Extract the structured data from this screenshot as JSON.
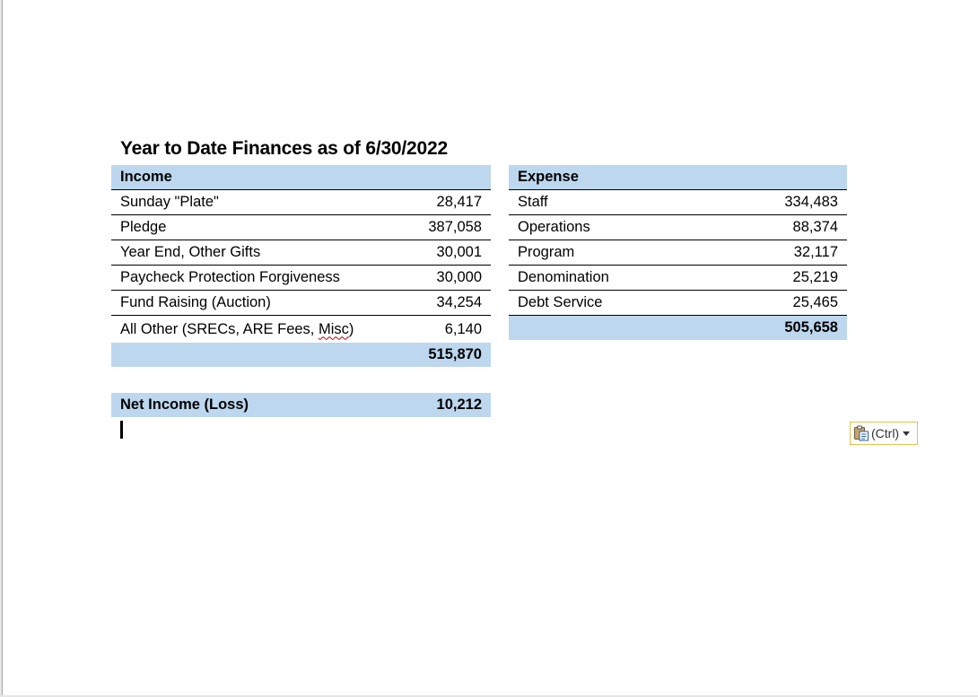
{
  "title": "Year to Date Finances as of 6/30/2022",
  "income": {
    "header": "Income",
    "rows": [
      {
        "label": "Sunday \"Plate\"",
        "value": "28,417"
      },
      {
        "label": "Pledge",
        "value": "387,058"
      },
      {
        "label": "Year End, Other Gifts",
        "value": "30,001"
      },
      {
        "label": "Paycheck Protection Forgiveness",
        "value": "30,000"
      },
      {
        "label": "Fund Raising (Auction)",
        "value": "34,254"
      },
      {
        "label_prefix": "All Other (SRECs, ARE Fees, ",
        "label_squiggle": "Misc",
        "label_suffix": ")",
        "value": "6,140"
      }
    ],
    "total": "515,870"
  },
  "expense": {
    "header": "Expense",
    "rows": [
      {
        "label": "Staff",
        "value": "334,483"
      },
      {
        "label": "Operations",
        "value": "88,374"
      },
      {
        "label": "Program",
        "value": "32,117"
      },
      {
        "label": "Denomination",
        "value": "25,219"
      },
      {
        "label": "Debt Service",
        "value": "25,465"
      }
    ],
    "total": "505,658"
  },
  "net": {
    "label": "Net Income (Loss)",
    "value": "10,212"
  },
  "paste_options": {
    "label": "(Ctrl)",
    "icon": "clipboard-paste-icon"
  },
  "colors": {
    "header_fill": "#bdd7ee",
    "paste_border": "#e3c24c"
  }
}
